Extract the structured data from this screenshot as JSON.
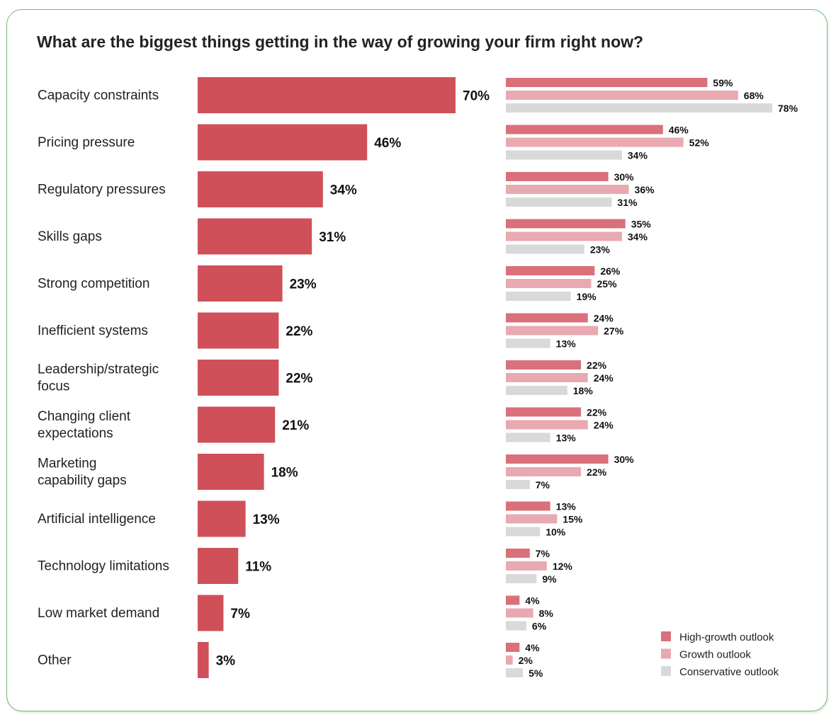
{
  "chart_data": {
    "type": "bar",
    "orientation": "horizontal",
    "title": "What are the biggest things getting in the way of growing your firm right now?",
    "categories": [
      "Capacity constraints",
      "Pricing pressure",
      "Regulatory pressures",
      "Skills gaps",
      "Strong competition",
      "Inefficient systems",
      "Leadership/strategic focus",
      "Changing client expectations",
      "Marketing capability gaps",
      "Artificial intelligence",
      "Technology limitations",
      "Low market demand",
      "Other"
    ],
    "category_lines": [
      [
        "Capacity constraints"
      ],
      [
        "Pricing pressure"
      ],
      [
        "Regulatory pressures"
      ],
      [
        "Skills gaps"
      ],
      [
        "Strong competition"
      ],
      [
        "Inefficient systems"
      ],
      [
        "Leadership/strategic",
        "focus"
      ],
      [
        "Changing client",
        "expectations"
      ],
      [
        "Marketing",
        "capability gaps"
      ],
      [
        "Artificial intelligence"
      ],
      [
        "Technology limitations"
      ],
      [
        "Low market demand"
      ],
      [
        "Other"
      ]
    ],
    "values": [
      70,
      46,
      34,
      31,
      23,
      22,
      22,
      21,
      18,
      13,
      11,
      7,
      3
    ],
    "value_suffix": "%",
    "series": [
      {
        "name": "High-growth outlook",
        "color": "#d9707a",
        "values": [
          59,
          46,
          30,
          35,
          26,
          24,
          22,
          22,
          30,
          13,
          7,
          4,
          4
        ]
      },
      {
        "name": "Growth outlook",
        "color": "#e8a9b0",
        "values": [
          68,
          52,
          36,
          34,
          25,
          27,
          24,
          24,
          22,
          15,
          12,
          8,
          2
        ]
      },
      {
        "name": "Conservative outlook",
        "color": "#d9d9d9",
        "values": [
          78,
          34,
          31,
          23,
          19,
          13,
          18,
          13,
          7,
          10,
          9,
          6,
          5
        ]
      }
    ],
    "main_color": "#cf5059",
    "legend_position": "bottom-right"
  }
}
